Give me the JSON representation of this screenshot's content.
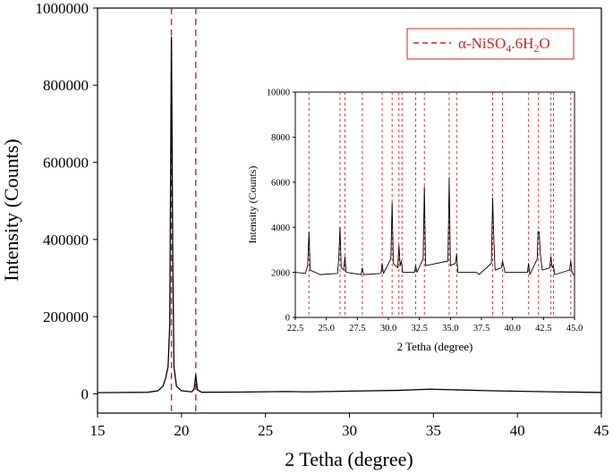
{
  "chart_data": [
    {
      "type": "line",
      "xlabel": "2 Tetha (degree)",
      "ylabel": "Intensity (Counts)",
      "xlim": [
        15,
        45
      ],
      "ylim": [
        -50000,
        1000000
      ],
      "xticks": [
        15,
        20,
        25,
        30,
        35,
        40,
        45
      ],
      "yticks": [
        0,
        200000,
        400000,
        600000,
        800000,
        1000000
      ],
      "xtick_labels": [
        "15",
        "20",
        "25",
        "30",
        "35",
        "40",
        "45"
      ],
      "ytick_labels": [
        "0",
        "200000",
        "400000",
        "600000",
        "800000",
        "1000000"
      ],
      "grid": false,
      "legend": {
        "entries": [
          "α-NiSO₄.6H₂O"
        ],
        "placement": "top-right",
        "style": "dashed",
        "color": "#d62020"
      },
      "reference_lines": [
        19.4,
        20.85
      ],
      "series": [
        {
          "color": "#000000",
          "points": [
            [
              15,
              3000
            ],
            [
              18.0,
              4000
            ],
            [
              18.6,
              8000
            ],
            [
              18.9,
              20000
            ],
            [
              19.05,
              40000
            ],
            [
              19.2,
              70000
            ],
            [
              19.3,
              180000
            ],
            [
              19.4,
              925000
            ],
            [
              19.48,
              350000
            ],
            [
              19.55,
              70000
            ],
            [
              19.7,
              20000
            ],
            [
              20.0,
              8000
            ],
            [
              20.6,
              5000
            ],
            [
              20.75,
              12000
            ],
            [
              20.85,
              48000
            ],
            [
              20.95,
              10000
            ],
            [
              21.2,
              4000
            ],
            [
              23.5,
              4500
            ],
            [
              26.2,
              6000
            ],
            [
              27.5,
              5000
            ],
            [
              30.1,
              7000
            ],
            [
              32.9,
              9000
            ],
            [
              34.8,
              12000
            ],
            [
              38.4,
              8000
            ],
            [
              42.2,
              5000
            ],
            [
              45,
              3500
            ]
          ]
        }
      ]
    },
    {
      "type": "line",
      "xlabel": "2 Tetha (degree)",
      "ylabel": "Intensity (Counts)",
      "xlim": [
        22.5,
        45
      ],
      "ylim": [
        0,
        10000
      ],
      "xticks": [
        22.5,
        25.0,
        27.5,
        30.0,
        32.5,
        35.0,
        37.5,
        40.0,
        42.5,
        45.0
      ],
      "yticks": [
        0,
        2000,
        4000,
        6000,
        8000,
        10000
      ],
      "xtick_labels": [
        "22.5",
        "25.0",
        "27.5",
        "30.0",
        "32.5",
        "35.0",
        "37.5",
        "40.0",
        "42.5",
        "45.0"
      ],
      "ytick_labels": [
        "0",
        "2000",
        "4000",
        "6000",
        "8000",
        "10000"
      ],
      "grid": false,
      "reference_lines": [
        23.6,
        26.1,
        26.5,
        27.9,
        29.5,
        30.3,
        30.85,
        31.1,
        32.2,
        32.9,
        34.9,
        35.5,
        38.4,
        39.2,
        41.3,
        42.1,
        43.1,
        43.3,
        44.7
      ],
      "series": [
        {
          "color": "#000000",
          "points": [
            [
              22.5,
              2000
            ],
            [
              23.3,
              1950
            ],
            [
              23.5,
              2300
            ],
            [
              23.6,
              3800
            ],
            [
              23.7,
              2100
            ],
            [
              24.5,
              1900
            ],
            [
              25.9,
              1950
            ],
            [
              26.0,
              2600
            ],
            [
              26.1,
              4000
            ],
            [
              26.2,
              2200
            ],
            [
              26.4,
              2100
            ],
            [
              26.5,
              2700
            ],
            [
              26.6,
              2000
            ],
            [
              27.8,
              1900
            ],
            [
              27.9,
              2200
            ],
            [
              28.0,
              1900
            ],
            [
              29.4,
              1950
            ],
            [
              29.5,
              2400
            ],
            [
              29.6,
              1950
            ],
            [
              30.2,
              2600
            ],
            [
              30.3,
              5100
            ],
            [
              30.4,
              2400
            ],
            [
              30.75,
              2200
            ],
            [
              30.85,
              3200
            ],
            [
              30.95,
              2300
            ],
            [
              31.05,
              2500
            ],
            [
              31.15,
              2000
            ],
            [
              32.1,
              2000
            ],
            [
              32.2,
              2300
            ],
            [
              32.3,
              2000
            ],
            [
              32.8,
              2600
            ],
            [
              32.9,
              5800
            ],
            [
              33.0,
              2300
            ],
            [
              34.8,
              2500
            ],
            [
              34.9,
              6200
            ],
            [
              35.0,
              2300
            ],
            [
              35.4,
              2400
            ],
            [
              35.5,
              2800
            ],
            [
              35.6,
              2000
            ],
            [
              37.1,
              2000
            ],
            [
              37.3,
              1900
            ],
            [
              38.3,
              2400
            ],
            [
              38.4,
              5300
            ],
            [
              38.5,
              3400
            ],
            [
              38.6,
              2100
            ],
            [
              39.1,
              2200
            ],
            [
              39.2,
              2500
            ],
            [
              39.4,
              2000
            ],
            [
              41.2,
              2000
            ],
            [
              41.3,
              2400
            ],
            [
              41.4,
              1900
            ],
            [
              42.0,
              2600
            ],
            [
              42.05,
              3800
            ],
            [
              42.15,
              3800
            ],
            [
              42.25,
              2800
            ],
            [
              42.4,
              2100
            ],
            [
              43.0,
              2200
            ],
            [
              43.1,
              2700
            ],
            [
              43.2,
              2200
            ],
            [
              43.3,
              2300
            ],
            [
              43.4,
              1900
            ],
            [
              44.6,
              2100
            ],
            [
              44.7,
              2500
            ],
            [
              44.8,
              2000
            ],
            [
              45,
              1850
            ]
          ]
        }
      ]
    }
  ]
}
